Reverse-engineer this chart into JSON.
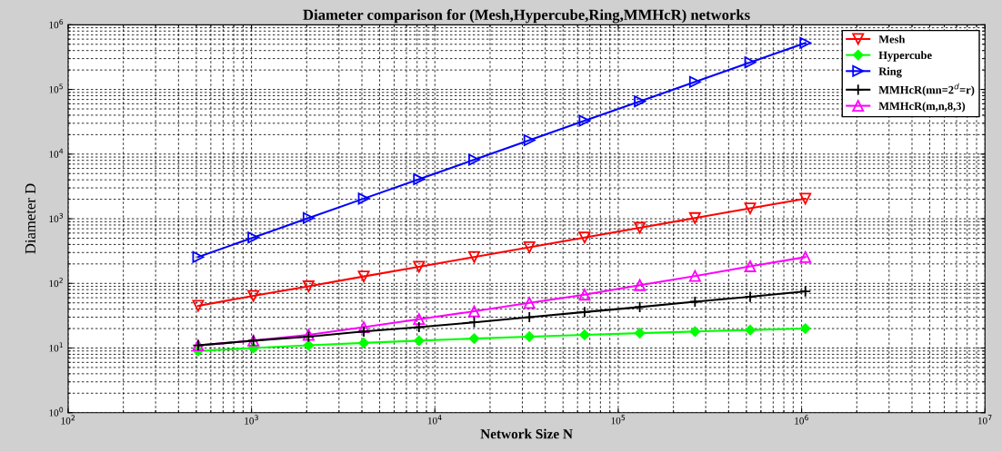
{
  "chart_data": {
    "type": "line",
    "title": "Diameter comparison for (Mesh,Hypercube,Ring,MMHcR) networks",
    "xlabel": "Network Size N",
    "ylabel": "Diameter D",
    "x": [
      512,
      1024,
      2048,
      4096,
      8192,
      16384,
      32768,
      65536,
      131072,
      262144,
      524288,
      1048576
    ],
    "series": [
      {
        "name": "Mesh",
        "color": "#ff0000",
        "marker": "triangle_down",
        "values": [
          45,
          64,
          90,
          128,
          181,
          256,
          362,
          512,
          724,
          1024,
          1448,
          2048
        ]
      },
      {
        "name": "Hypercube",
        "color": "#00ff00",
        "marker": "diamond",
        "values": [
          9,
          10,
          11,
          12,
          13,
          14,
          15,
          16,
          17,
          18,
          19,
          20
        ]
      },
      {
        "name": "Ring",
        "color": "#0000ff",
        "marker": "triangle_right",
        "values": [
          256,
          512,
          1024,
          2048,
          4096,
          8192,
          16384,
          32768,
          65536,
          131072,
          262144,
          524288
        ]
      },
      {
        "name": "MMHcR(mn=2$^{d}$=r)",
        "color": "#000000",
        "marker": "plus",
        "values": [
          11,
          13,
          15,
          18,
          21,
          25,
          30,
          36,
          43,
          52,
          62,
          75
        ]
      },
      {
        "name": "MMHcR(m,n,8,3)",
        "color": "#ff00ff",
        "marker": "triangle",
        "values": [
          11,
          13,
          16,
          21,
          28,
          37,
          50,
          67,
          94,
          130,
          184,
          255
        ]
      }
    ],
    "log": "xy",
    "xlim": [
      100,
      10000000
    ],
    "ylim": [
      1,
      1000000
    ],
    "xticks": [
      {
        "value": 100,
        "label": "10$^{2}$"
      },
      {
        "value": 1000,
        "label": "10$^{3}$"
      },
      {
        "value": 10000,
        "label": "10$^{4}$"
      },
      {
        "value": 100000,
        "label": "10$^{5}$"
      },
      {
        "value": 1000000,
        "label": "10$^{6}$"
      },
      {
        "value": 10000000,
        "label": "10$^{7}$"
      }
    ],
    "yticks": [
      {
        "value": 1,
        "label": "10$^{0}$"
      },
      {
        "value": 10,
        "label": "10$^{1}$"
      },
      {
        "value": 100,
        "label": "10$^{2}$"
      },
      {
        "value": 1000,
        "label": "10$^{3}$"
      },
      {
        "value": 10000,
        "label": "10$^{4}$"
      },
      {
        "value": 100000,
        "label": "10$^{5}$"
      },
      {
        "value": 1000000,
        "label": "10$^{6}$"
      }
    ],
    "grid": true,
    "legend": "top right",
    "line_style": "solid"
  }
}
